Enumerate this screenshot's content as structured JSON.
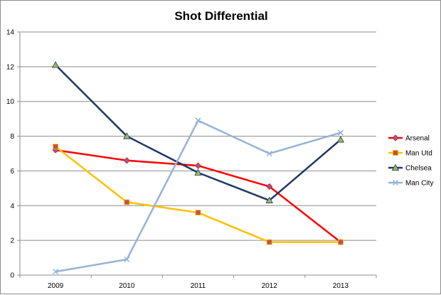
{
  "chart_data": {
    "type": "line",
    "title": "Shot Differential",
    "xlabel": "",
    "ylabel": "",
    "categories": [
      "2009",
      "2010",
      "2011",
      "2012",
      "2013"
    ],
    "ylim": [
      0,
      14
    ],
    "yticks": [
      0,
      2,
      4,
      6,
      8,
      10,
      12,
      14
    ],
    "grid": true,
    "legend_position": "right",
    "series": [
      {
        "name": "Arsenal",
        "values": [
          7.2,
          6.6,
          6.3,
          5.1,
          1.9
        ],
        "color": "#ff0000",
        "marker": "diamond",
        "marker_color": "#8064a2"
      },
      {
        "name": "Man Utd",
        "values": [
          7.4,
          4.2,
          3.6,
          1.9,
          1.9
        ],
        "color": "#ffc000",
        "marker": "square",
        "marker_color": "#c0504d"
      },
      {
        "name": "Chelsea",
        "values": [
          12.1,
          8.0,
          5.9,
          4.3,
          7.8
        ],
        "color": "#1f3864",
        "marker": "triangle",
        "marker_color": "#9bbb59"
      },
      {
        "name": "Man City",
        "values": [
          0.2,
          0.9,
          8.9,
          7.0,
          8.2
        ],
        "color": "#95b3d7",
        "marker": "x",
        "marker_color": "#95b3d7"
      }
    ]
  }
}
